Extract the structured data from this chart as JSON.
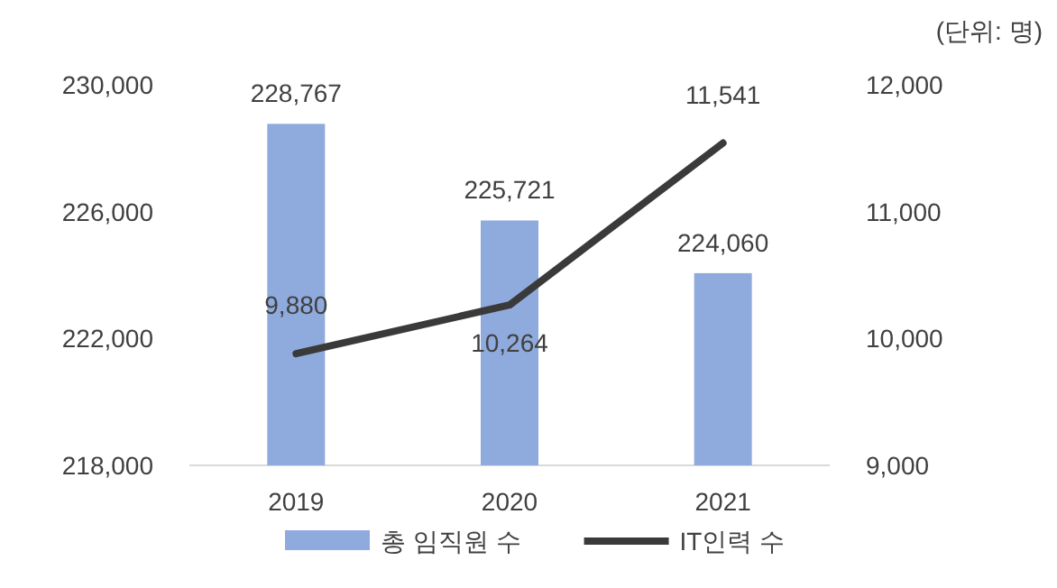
{
  "chart_data": {
    "type": "bar",
    "categories": [
      "2019",
      "2020",
      "2021"
    ],
    "series": [
      {
        "name": "총 임직원 수",
        "color": "#8faadc",
        "values": [
          228767,
          225721,
          224060
        ],
        "value_labels": [
          "228,767",
          "225,721",
          "224,060"
        ]
      },
      {
        "name": "IT인력 수",
        "type": "line",
        "axis": "y2",
        "color": "#3a3a3a",
        "values": [
          9880,
          10264,
          11541
        ],
        "value_labels": [
          "9,880",
          "10,264",
          "11,541"
        ]
      }
    ],
    "ylim": [
      218000,
      230000
    ],
    "yticks": [
      {
        "value": 218000,
        "label": "218,000"
      },
      {
        "value": 222000,
        "label": "222,000"
      },
      {
        "value": 226000,
        "label": "226,000"
      },
      {
        "value": 230000,
        "label": "230,000"
      }
    ],
    "y2lim": [
      9000,
      12000
    ],
    "y2ticks": [
      {
        "value": 9000,
        "label": "9,000"
      },
      {
        "value": 10000,
        "label": "10,000"
      },
      {
        "value": 11000,
        "label": "11,000"
      },
      {
        "value": 12000,
        "label": "12,000"
      }
    ],
    "grid": false,
    "legend": "bottom",
    "marker": "none",
    "line_style": "solid",
    "annotations": [
      "(단위: 명)"
    ]
  }
}
